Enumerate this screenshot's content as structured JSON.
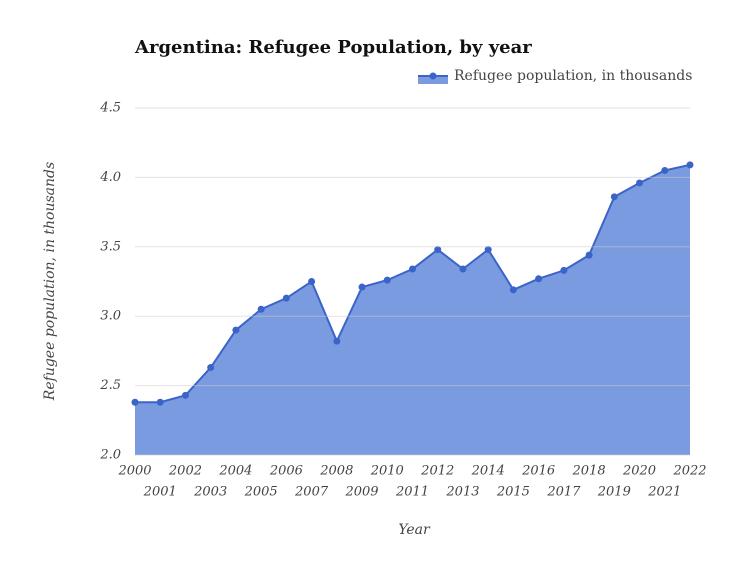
{
  "chart_data": {
    "type": "area",
    "title": "Argentina: Refugee Population, by year",
    "x_label": "Year",
    "y_label": "Refugee population, in thousands",
    "x": [
      2000,
      2001,
      2002,
      2003,
      2004,
      2005,
      2006,
      2007,
      2008,
      2009,
      2010,
      2011,
      2012,
      2013,
      2014,
      2015,
      2016,
      2017,
      2018,
      2019,
      2020,
      2021,
      2022
    ],
    "series": [
      {
        "name": "Refugee population, in thousands",
        "color": "#3b64c8",
        "fill": "#7a9be0",
        "values": [
          2.38,
          2.38,
          2.43,
          2.63,
          2.9,
          3.05,
          3.13,
          3.25,
          2.82,
          3.21,
          3.26,
          3.34,
          3.48,
          3.34,
          3.48,
          3.19,
          3.27,
          3.33,
          3.44,
          3.86,
          3.96,
          4.05,
          4.09
        ]
      }
    ],
    "xlim": [
      2000,
      2022
    ],
    "xticks": [
      2000,
      2001,
      2002,
      2003,
      2004,
      2005,
      2006,
      2007,
      2008,
      2009,
      2010,
      2011,
      2012,
      2013,
      2014,
      2015,
      2016,
      2017,
      2018,
      2019,
      2020,
      2021,
      2022
    ],
    "ylim": [
      2,
      4.5
    ],
    "yticks": [
      {
        "value": 2,
        "label": "2.0"
      },
      2.5,
      {
        "value": 3,
        "label": "3.0"
      },
      3.5,
      {
        "value": 4,
        "label": "4.0"
      },
      4.5
    ],
    "grid": true,
    "legend": "top-right"
  }
}
